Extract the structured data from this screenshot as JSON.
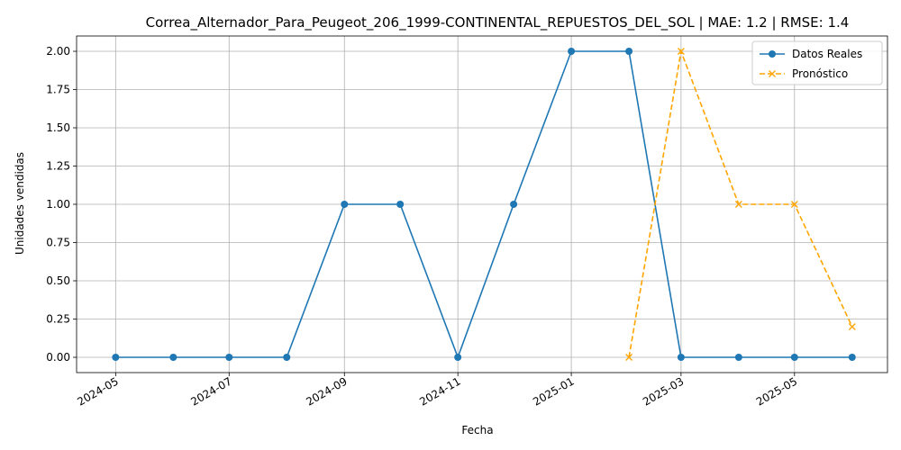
{
  "chart_data": {
    "type": "line",
    "title": "Correa_Alternador_Para_Peugeot_206_1999-CONTINENTAL_REPUESTOS_DEL_SOL | MAE: 1.2 | RMSE: 1.4",
    "xlabel": "Fecha",
    "ylabel": "Unidades vendidas",
    "x_ticks": [
      "2024-05",
      "2024-07",
      "2024-09",
      "2024-11",
      "2025-01",
      "2025-03",
      "2025-05"
    ],
    "y_ticks": [
      "0.00",
      "0.25",
      "0.50",
      "0.75",
      "1.00",
      "1.25",
      "1.50",
      "1.75",
      "2.00"
    ],
    "ylim": [
      -0.1,
      2.1
    ],
    "xlim": [
      "2024-04-10",
      "2025-06-20"
    ],
    "grid": true,
    "legend_position": "top-right",
    "series": [
      {
        "name": "Datos Reales",
        "color": "#1f77b4",
        "line_style": "solid",
        "marker": "circle",
        "x": [
          "2024-05-01",
          "2024-06-01",
          "2024-07-01",
          "2024-08-01",
          "2024-09-01",
          "2024-10-01",
          "2024-11-01",
          "2024-12-01",
          "2025-01-01",
          "2025-02-01",
          "2025-03-01",
          "2025-04-01",
          "2025-05-01",
          "2025-06-01"
        ],
        "values": [
          0,
          0,
          0,
          0,
          1,
          1,
          0,
          1,
          2,
          2,
          0,
          0,
          0,
          0
        ]
      },
      {
        "name": "Pronóstico",
        "color": "#ffa500",
        "line_style": "dashed",
        "marker": "x",
        "x": [
          "2025-02-01",
          "2025-03-01",
          "2025-04-01",
          "2025-05-01",
          "2025-06-01"
        ],
        "values": [
          0,
          2,
          1,
          1,
          0.2
        ]
      }
    ]
  }
}
